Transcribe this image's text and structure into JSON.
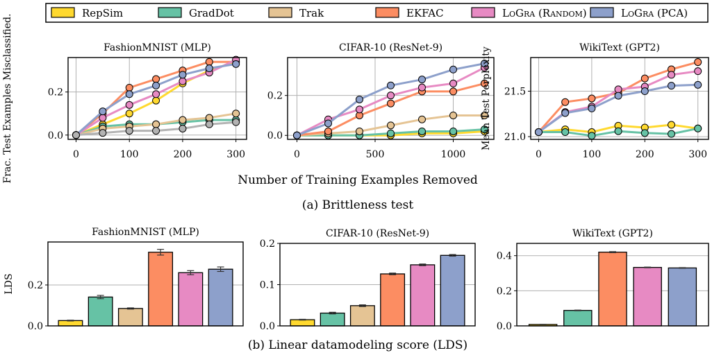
{
  "legend": {
    "items": [
      {
        "label": "RepSim",
        "color": "#ffd92f"
      },
      {
        "label": "GradDot",
        "color": "#66c2a5"
      },
      {
        "label": "Trak",
        "color": "#e5c494"
      },
      {
        "label": "EKFAC",
        "color": "#fc8d62"
      },
      {
        "label": "LoGra (Random)",
        "color": "#e78ac3"
      },
      {
        "label": "LoGra (PCA)",
        "color": "#8da0cb"
      }
    ]
  },
  "captions": {
    "a": "(a) Brittleness test",
    "b": "(b) Linear datamodeling score (LDS)"
  },
  "shared_xlabel": "Number of Training Examples Removed",
  "chart_data": [
    {
      "type": "line",
      "title": "FashionMNIST (MLP)",
      "ylabel": "Frac. Test Examples Misclassified.",
      "x": [
        0,
        50,
        100,
        150,
        200,
        250,
        300
      ],
      "xlim": [
        -15,
        320
      ],
      "ylim": [
        -0.02,
        0.36
      ],
      "xticks": [
        0,
        100,
        200,
        300
      ],
      "yticks": [
        0.0,
        0.2
      ],
      "ytick_labels": [
        "0.0",
        "0.2"
      ],
      "grid": true,
      "series": [
        {
          "name": "RepSim",
          "values": [
            0,
            0.05,
            0.1,
            0.16,
            0.24,
            0.3,
            0.34
          ]
        },
        {
          "name": "GradDot",
          "values": [
            0,
            0.04,
            0.05,
            0.05,
            0.06,
            0.07,
            0.07
          ]
        },
        {
          "name": "Trak",
          "values": [
            0,
            0.03,
            0.04,
            0.05,
            0.07,
            0.08,
            0.1
          ]
        },
        {
          "name": "EKFAC",
          "values": [
            0,
            0.1,
            0.22,
            0.26,
            0.3,
            0.34,
            0.34
          ]
        },
        {
          "name": "LoGra (Random)",
          "values": [
            0,
            0.08,
            0.14,
            0.19,
            0.25,
            0.29,
            0.35
          ]
        },
        {
          "name": "LoGra (PCA)",
          "values": [
            0,
            0.11,
            0.19,
            0.23,
            0.28,
            0.31,
            0.33
          ]
        },
        {
          "name": "",
          "values": [
            0,
            0.01,
            0.02,
            0.02,
            0.03,
            0.05,
            0.06
          ]
        }
      ]
    },
    {
      "type": "line",
      "title": "CIFAR-10 (ResNet-9)",
      "ylabel": "",
      "x": [
        0,
        200,
        400,
        600,
        800,
        1000,
        1200
      ],
      "xlim": [
        -60,
        1260
      ],
      "ylim": [
        -0.02,
        0.39
      ],
      "xticks": [
        0,
        500,
        1000
      ],
      "yticks": [
        0.0,
        0.2
      ],
      "ytick_labels": [
        "0.0",
        "0.2"
      ],
      "grid": true,
      "series": [
        {
          "name": "RepSim",
          "values": [
            0,
            0.0,
            0.0,
            0.0,
            0.01,
            0.01,
            0.02
          ]
        },
        {
          "name": "GradDot",
          "values": [
            0,
            0.0,
            0.0,
            0.01,
            0.02,
            0.02,
            0.03
          ]
        },
        {
          "name": "Trak",
          "values": [
            0,
            0.01,
            0.02,
            0.05,
            0.08,
            0.1,
            0.1
          ]
        },
        {
          "name": "EKFAC",
          "values": [
            0,
            0.02,
            0.1,
            0.16,
            0.22,
            0.22,
            0.26
          ]
        },
        {
          "name": "LoGra (Random)",
          "values": [
            0,
            0.08,
            0.13,
            0.2,
            0.24,
            0.26,
            0.34
          ]
        },
        {
          "name": "LoGra (PCA)",
          "values": [
            0,
            0.06,
            0.18,
            0.25,
            0.28,
            0.33,
            0.36
          ]
        }
      ]
    },
    {
      "type": "line",
      "title": "WikiText (GPT2)",
      "ylabel": "Mean Test Perplexity",
      "x": [
        0,
        50,
        100,
        150,
        200,
        250,
        300
      ],
      "xlim": [
        -15,
        320
      ],
      "ylim": [
        20.97,
        21.87
      ],
      "xticks": [
        0,
        100,
        200,
        300
      ],
      "yticks": [
        21.0,
        21.5
      ],
      "ytick_labels": [
        "21.0",
        "21.5"
      ],
      "grid": true,
      "series": [
        {
          "name": "RepSim",
          "values": [
            21.05,
            21.08,
            21.05,
            21.12,
            21.1,
            21.13,
            21.09
          ]
        },
        {
          "name": "GradDot",
          "values": [
            21.05,
            21.05,
            21.01,
            21.06,
            21.04,
            21.03,
            21.09
          ]
        },
        {
          "name": "EKFAC",
          "values": [
            21.05,
            21.38,
            21.42,
            21.48,
            21.64,
            21.74,
            21.82
          ]
        },
        {
          "name": "LoGra (Random)",
          "values": [
            21.05,
            21.27,
            21.33,
            21.52,
            21.55,
            21.68,
            21.72
          ]
        },
        {
          "name": "LoGra (PCA)",
          "values": [
            21.05,
            21.26,
            21.31,
            21.45,
            21.5,
            21.56,
            21.57
          ]
        }
      ]
    },
    {
      "type": "bar",
      "title": "FashionMNIST (MLP)",
      "ylabel": "LDS",
      "categories": [
        "RepSim",
        "GradDot",
        "Trak",
        "EKFAC",
        "LoGra (Random)",
        "LoGra (PCA)"
      ],
      "values": [
        0.026,
        0.141,
        0.085,
        0.36,
        0.26,
        0.277
      ],
      "errors": [
        0.002,
        0.008,
        0.003,
        0.014,
        0.01,
        0.011
      ],
      "ylim": [
        0,
        0.41
      ],
      "yticks": [
        0.0,
        0.2
      ],
      "ytick_labels": [
        "0.0",
        "0.2"
      ],
      "grid": true
    },
    {
      "type": "bar",
      "title": "CIFAR-10 (ResNet-9)",
      "ylabel": "",
      "categories": [
        "RepSim",
        "GradDot",
        "Trak",
        "EKFAC",
        "LoGra (Random)",
        "LoGra (PCA)"
      ],
      "values": [
        0.015,
        0.031,
        0.049,
        0.126,
        0.148,
        0.171
      ],
      "errors": [
        0.001,
        0.002,
        0.002,
        0.002,
        0.002,
        0.002
      ],
      "ylim": [
        0,
        0.2
      ],
      "yticks": [
        0.0,
        0.1,
        0.2
      ],
      "ytick_labels": [
        "0.0",
        "0.1",
        "0.2"
      ],
      "grid": true
    },
    {
      "type": "bar",
      "title": "WikiText (GPT2)",
      "ylabel": "",
      "categories": [
        "RepSim",
        "GradDot",
        "EKFAC",
        "LoGra (Random)",
        "LoGra (PCA)"
      ],
      "values": [
        0.008,
        0.088,
        0.42,
        0.333,
        0.33
      ],
      "errors": [
        0.001,
        0.002,
        0.003,
        0.002,
        0.002
      ],
      "ylim": [
        0,
        0.47
      ],
      "yticks": [
        0.0,
        0.2,
        0.4
      ],
      "ytick_labels": [
        "0.0",
        "0.2",
        "0.4"
      ],
      "grid": true
    }
  ]
}
